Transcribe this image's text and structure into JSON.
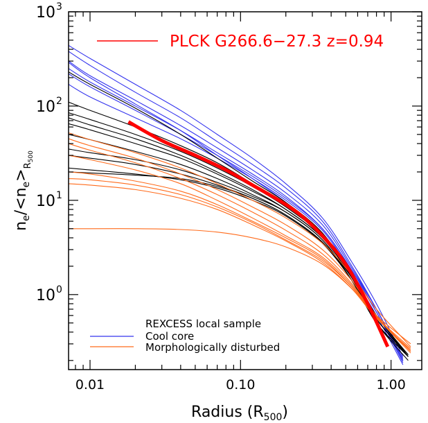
{
  "chart_data": {
    "type": "line",
    "xscale": "log",
    "yscale": "log",
    "xlim": [
      0.0072,
      1.6
    ],
    "ylim": [
      0.16,
      1000
    ],
    "xticks": [
      {
        "value": 0.01,
        "label": "0.01"
      },
      {
        "value": 0.1,
        "label": "0.10"
      },
      {
        "value": 1,
        "label": "1.00"
      }
    ],
    "yticks": [
      {
        "value": 1,
        "base": "10",
        "exp": "0"
      },
      {
        "value": 10,
        "base": "10",
        "exp": "1"
      },
      {
        "value": 100,
        "base": "10",
        "exp": "2"
      },
      {
        "value": 1000,
        "base": "10",
        "exp": "3"
      }
    ],
    "xlabel": {
      "main": "Radius (R",
      "sub": "500",
      "close": ")"
    },
    "ylabel": {
      "n1": "n",
      "sub1": "e",
      "mid": "/<n",
      "sub2": "e",
      "close": ">",
      "subR": "R",
      "subR2": "500"
    },
    "grid": false,
    "legend_top": {
      "label": "PLCK G266.6−27.3 z=0.94",
      "color": "#ff0000",
      "position": "top-right"
    },
    "legend_bottom": {
      "title": "REXCESS local sample",
      "entries": [
        {
          "label": "Cool core",
          "color": "#3333ee"
        },
        {
          "label": "Morphologically disturbed",
          "color": "#ff6a1a"
        }
      ],
      "position": "bottom-left"
    },
    "colors": {
      "cool_core": "#3333ee",
      "disturbed": "#ff6a1a",
      "other": "#000000",
      "highlight": "#ff0000"
    },
    "series": [
      {
        "group": "highlight",
        "color": "#ff0000",
        "x": [
          0.018,
          0.03,
          0.05,
          0.08,
          0.12,
          0.18,
          0.25,
          0.35,
          0.5,
          0.7,
          0.95
        ],
        "y": [
          68,
          43,
          30,
          21,
          14.5,
          10,
          7,
          4.2,
          2.1,
          0.8,
          0.28
        ]
      },
      {
        "group": "cool_core",
        "color": "#3333ee",
        "x": [
          0.0072,
          0.01,
          0.02,
          0.04,
          0.07,
          0.12,
          0.2,
          0.35,
          0.55,
          0.8,
          1.2
        ],
        "y": [
          440,
          320,
          170,
          90,
          50,
          28,
          15,
          6.5,
          2.2,
          0.8,
          0.22
        ]
      },
      {
        "group": "cool_core",
        "color": "#3333ee",
        "x": [
          0.0072,
          0.01,
          0.02,
          0.04,
          0.07,
          0.12,
          0.2,
          0.35,
          0.55,
          0.8,
          1.2
        ],
        "y": [
          380,
          270,
          140,
          75,
          42,
          24,
          13.5,
          6,
          2,
          0.7,
          0.2
        ]
      },
      {
        "group": "cool_core",
        "color": "#3333ee",
        "x": [
          0.0072,
          0.01,
          0.02,
          0.04,
          0.07,
          0.12,
          0.2,
          0.35,
          0.55,
          0.8,
          1.2
        ],
        "y": [
          300,
          210,
          115,
          62,
          36,
          21,
          12,
          5.5,
          1.9,
          0.7,
          0.21
        ]
      },
      {
        "group": "cool_core",
        "color": "#3333ee",
        "x": [
          0.0072,
          0.01,
          0.02,
          0.04,
          0.07,
          0.12,
          0.2,
          0.35,
          0.55,
          0.8,
          1.2
        ],
        "y": [
          250,
          180,
          100,
          55,
          32,
          19,
          11,
          5,
          1.8,
          0.65,
          0.19
        ]
      },
      {
        "group": "cool_core",
        "color": "#3333ee",
        "x": [
          0.0072,
          0.01,
          0.02,
          0.04,
          0.07,
          0.12,
          0.2,
          0.35,
          0.55,
          0.8,
          1.2
        ],
        "y": [
          220,
          160,
          90,
          50,
          30,
          18,
          10.5,
          5,
          1.8,
          0.7,
          0.2
        ]
      },
      {
        "group": "cool_core",
        "color": "#3333ee",
        "x": [
          0.0072,
          0.01,
          0.02,
          0.04,
          0.07,
          0.12,
          0.2,
          0.35,
          0.55,
          0.8,
          1.2
        ],
        "y": [
          170,
          125,
          75,
          45,
          28,
          17,
          10,
          4.8,
          1.7,
          0.65,
          0.2
        ]
      },
      {
        "group": "cool_core",
        "color": "#3333ee",
        "x": [
          0.0072,
          0.01,
          0.02,
          0.04,
          0.07,
          0.12,
          0.2,
          0.35,
          0.55,
          0.8,
          1.2
        ],
        "y": [
          290,
          200,
          105,
          55,
          30,
          17,
          9.5,
          4.5,
          1.6,
          0.6,
          0.18
        ]
      },
      {
        "group": "other",
        "color": "#000000",
        "x": [
          0.0072,
          0.01,
          0.02,
          0.04,
          0.07,
          0.12,
          0.2,
          0.35,
          0.55,
          0.8,
          1.3
        ],
        "y": [
          230,
          170,
          95,
          50,
          28,
          16,
          9.5,
          4.5,
          1.5,
          0.5,
          0.2
        ]
      },
      {
        "group": "other",
        "color": "#000000",
        "x": [
          0.0072,
          0.01,
          0.02,
          0.04,
          0.07,
          0.12,
          0.2,
          0.35,
          0.55,
          0.8,
          1.3
        ],
        "y": [
          110,
          90,
          60,
          38,
          25,
          15,
          9,
          4.3,
          1.6,
          0.6,
          0.22
        ]
      },
      {
        "group": "other",
        "color": "#000000",
        "x": [
          0.0072,
          0.01,
          0.02,
          0.04,
          0.07,
          0.12,
          0.2,
          0.35,
          0.55,
          0.8,
          1.3
        ],
        "y": [
          85,
          72,
          50,
          33,
          22,
          14,
          8.5,
          4.2,
          1.6,
          0.6,
          0.23
        ]
      },
      {
        "group": "other",
        "color": "#000000",
        "x": [
          0.0072,
          0.01,
          0.02,
          0.04,
          0.07,
          0.12,
          0.2,
          0.35,
          0.55,
          0.8,
          1.3
        ],
        "y": [
          75,
          63,
          45,
          30,
          20,
          13,
          8,
          4,
          1.5,
          0.55,
          0.22
        ]
      },
      {
        "group": "other",
        "color": "#000000",
        "x": [
          0.0072,
          0.01,
          0.02,
          0.04,
          0.07,
          0.12,
          0.2,
          0.35,
          0.55,
          0.8,
          1.3
        ],
        "y": [
          65,
          56,
          40,
          28,
          19,
          12.5,
          8,
          4,
          1.5,
          0.55,
          0.22
        ]
      },
      {
        "group": "other",
        "color": "#000000",
        "x": [
          0.0072,
          0.01,
          0.02,
          0.04,
          0.07,
          0.12,
          0.2,
          0.35,
          0.55,
          0.8,
          1.3
        ],
        "y": [
          50,
          44,
          33,
          24,
          17,
          11.5,
          7.5,
          3.8,
          1.4,
          0.5,
          0.22
        ]
      },
      {
        "group": "other",
        "color": "#000000",
        "x": [
          0.0072,
          0.01,
          0.02,
          0.04,
          0.07,
          0.12,
          0.2,
          0.35,
          0.55,
          0.8,
          1.3
        ],
        "y": [
          35,
          32,
          27,
          21,
          15.5,
          11,
          7.5,
          3.8,
          1.4,
          0.5,
          0.22
        ]
      },
      {
        "group": "other",
        "color": "#000000",
        "x": [
          0.0072,
          0.01,
          0.02,
          0.04,
          0.07,
          0.12,
          0.2,
          0.35,
          0.55,
          0.8,
          1.3
        ],
        "y": [
          30,
          28,
          24,
          19,
          14.5,
          10.5,
          7,
          3.6,
          1.4,
          0.5,
          0.22
        ]
      },
      {
        "group": "other",
        "color": "#000000",
        "x": [
          0.0072,
          0.01,
          0.02,
          0.04,
          0.07,
          0.12,
          0.2,
          0.35,
          0.55,
          0.8,
          1.3
        ],
        "y": [
          22,
          21,
          19,
          16.5,
          13.5,
          10,
          6.8,
          3.5,
          1.4,
          0.5,
          0.22
        ]
      },
      {
        "group": "other",
        "color": "#000000",
        "x": [
          0.0072,
          0.01,
          0.02,
          0.04,
          0.07,
          0.12,
          0.2,
          0.35,
          0.55,
          0.8,
          1.3
        ],
        "y": [
          20,
          19.5,
          18.5,
          17,
          14,
          10.5,
          7,
          3.6,
          1.5,
          0.55,
          0.23
        ]
      },
      {
        "group": "disturbed",
        "color": "#ff6a1a",
        "x": [
          0.0072,
          0.01,
          0.02,
          0.04,
          0.07,
          0.12,
          0.2,
          0.35,
          0.55,
          0.8,
          1.35
        ],
        "y": [
          52,
          44,
          32,
          22,
          15,
          10,
          6.5,
          3.5,
          1.6,
          0.7,
          0.28
        ]
      },
      {
        "group": "disturbed",
        "color": "#ff6a1a",
        "x": [
          0.0072,
          0.01,
          0.02,
          0.04,
          0.07,
          0.12,
          0.2,
          0.35,
          0.55,
          0.8,
          1.35
        ],
        "y": [
          45,
          38,
          28,
          19,
          13,
          8.5,
          5.5,
          3,
          1.4,
          0.6,
          0.25
        ]
      },
      {
        "group": "disturbed",
        "color": "#ff6a1a",
        "x": [
          0.0072,
          0.01,
          0.02,
          0.04,
          0.07,
          0.12,
          0.2,
          0.35,
          0.55,
          0.8,
          1.35
        ],
        "y": [
          40,
          34,
          25,
          17,
          11.5,
          7.5,
          4.8,
          2.7,
          1.3,
          0.58,
          0.24
        ]
      },
      {
        "group": "disturbed",
        "color": "#ff6a1a",
        "x": [
          0.0072,
          0.01,
          0.02,
          0.04,
          0.07,
          0.12,
          0.2,
          0.35,
          0.55,
          0.8,
          1.35
        ],
        "y": [
          30,
          27,
          21,
          15,
          10,
          6.5,
          4.2,
          2.5,
          1.25,
          0.58,
          0.25
        ]
      },
      {
        "group": "disturbed",
        "color": "#ff6a1a",
        "x": [
          0.0072,
          0.01,
          0.02,
          0.04,
          0.07,
          0.12,
          0.2,
          0.35,
          0.55,
          0.8,
          1.35
        ],
        "y": [
          20,
          19,
          16,
          12.5,
          9,
          6,
          4,
          2.4,
          1.2,
          0.57,
          0.25
        ]
      },
      {
        "group": "disturbed",
        "color": "#ff6a1a",
        "x": [
          0.0072,
          0.01,
          0.02,
          0.04,
          0.07,
          0.12,
          0.2,
          0.35,
          0.55,
          0.8,
          1.35
        ],
        "y": [
          17,
          16.5,
          14.5,
          11.5,
          8.5,
          5.8,
          3.8,
          2.3,
          1.2,
          0.58,
          0.27
        ]
      },
      {
        "group": "disturbed",
        "color": "#ff6a1a",
        "x": [
          0.0072,
          0.01,
          0.02,
          0.04,
          0.07,
          0.12,
          0.2,
          0.35,
          0.55,
          0.8,
          1.35
        ],
        "y": [
          15,
          14.5,
          13,
          10.5,
          8,
          5.5,
          3.7,
          2.2,
          1.15,
          0.56,
          0.26
        ]
      },
      {
        "group": "disturbed",
        "color": "#ff6a1a",
        "x": [
          0.0072,
          0.01,
          0.02,
          0.04,
          0.07,
          0.12,
          0.2,
          0.35,
          0.55,
          0.8,
          1.35
        ],
        "y": [
          5,
          5,
          5,
          4.9,
          4.6,
          4,
          3.2,
          2.1,
          1.15,
          0.6,
          0.3
        ]
      }
    ]
  }
}
